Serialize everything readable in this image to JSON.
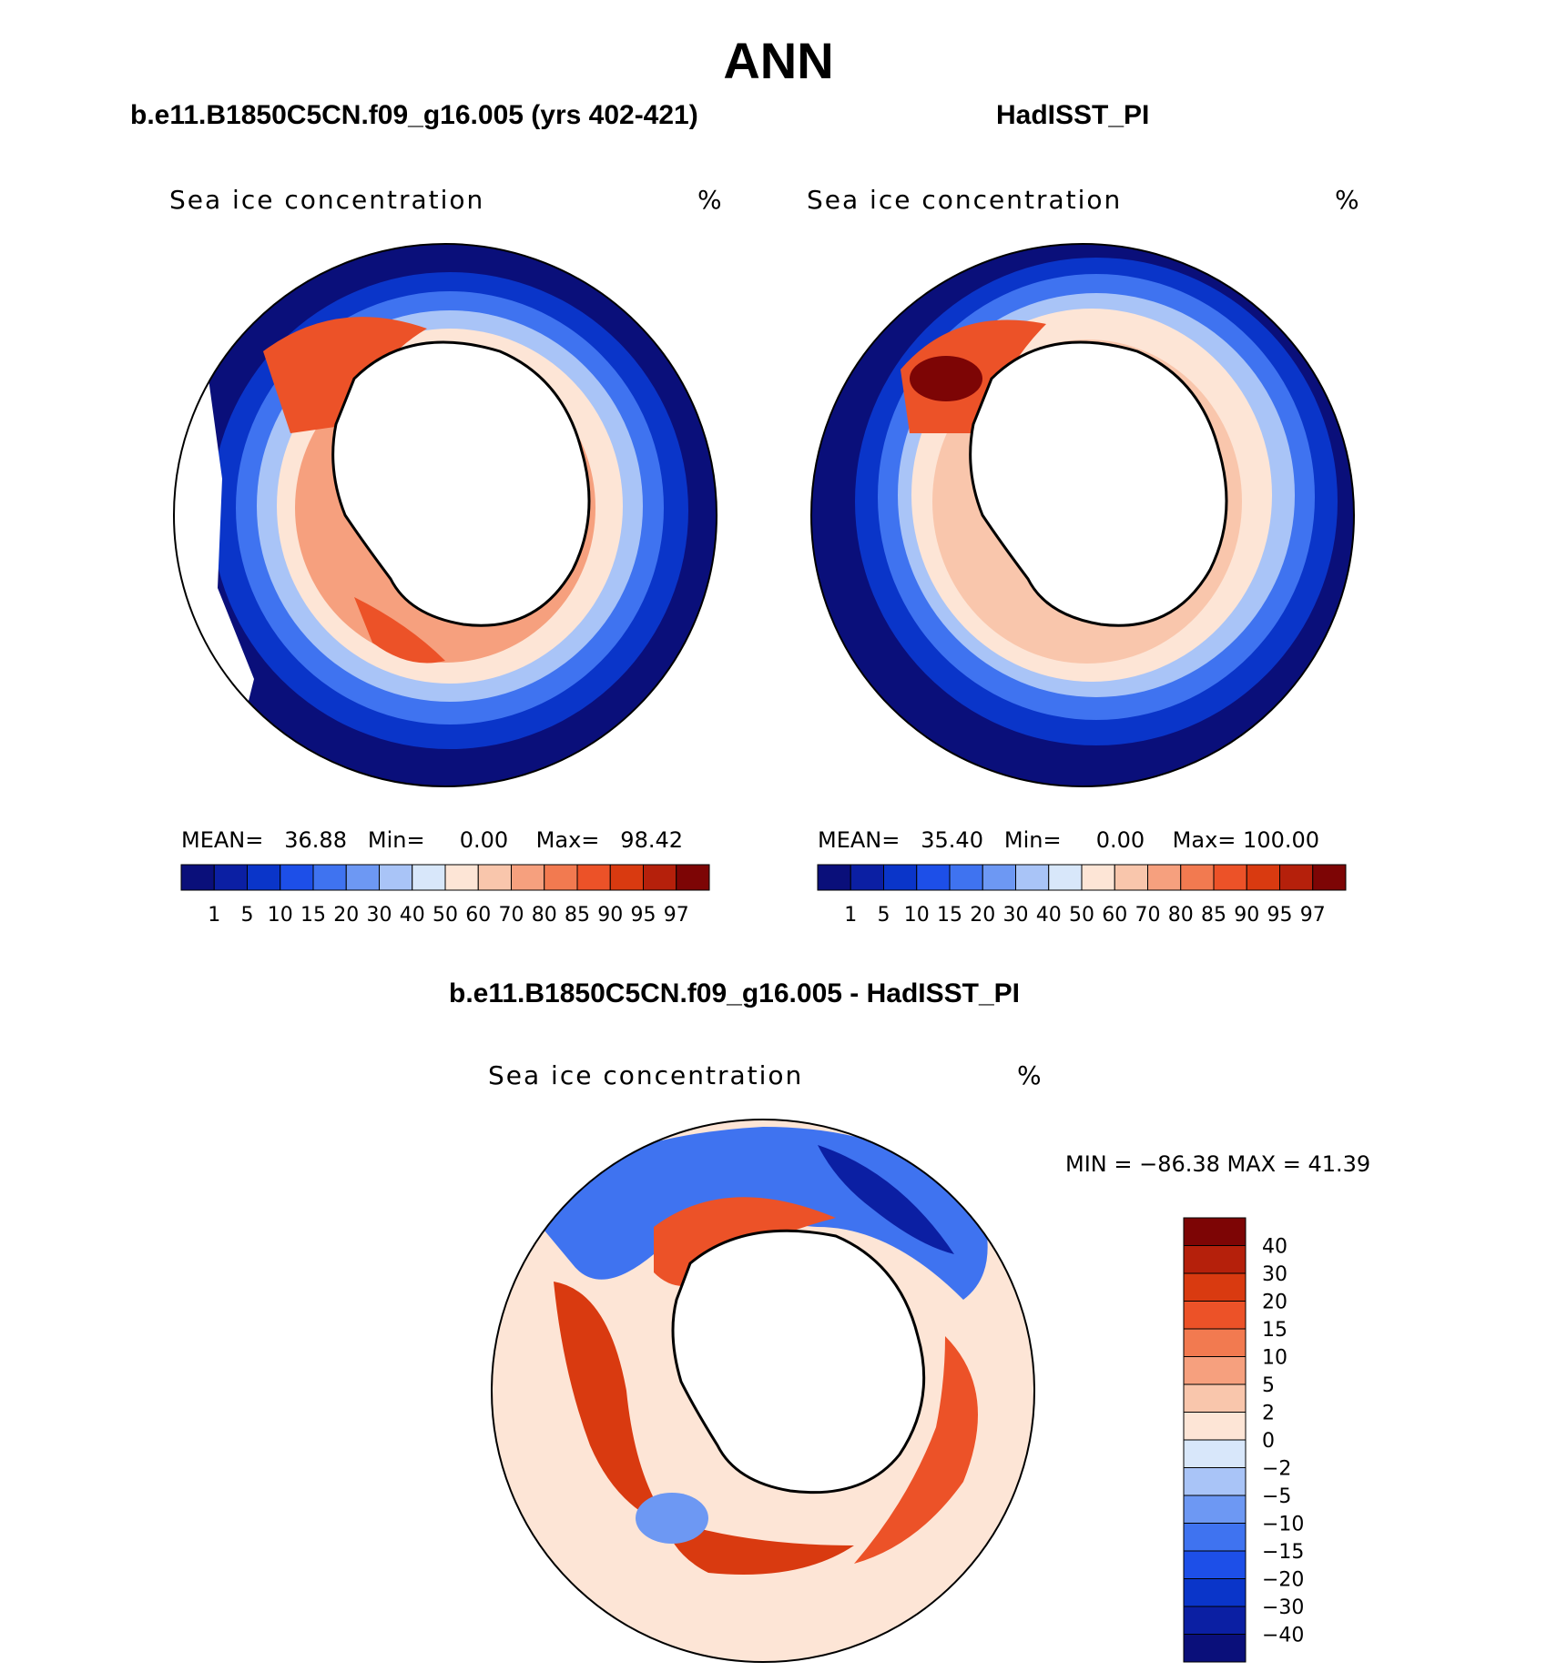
{
  "figure": {
    "title": "ANN",
    "left": {
      "panel_title": "b.e11.B1850C5CN.f09_g16.005 (yrs 402-421)",
      "variable": "Sea ice concentration",
      "units": "%",
      "stats": {
        "mean_label": "MEAN=",
        "mean": "36.88",
        "min_label": "Min=",
        "min": "0.00",
        "max_label": "Max=",
        "max": "98.42"
      }
    },
    "right": {
      "panel_title": "HadISST_PI",
      "variable": "Sea ice concentration",
      "units": "%",
      "stats": {
        "mean_label": "MEAN=",
        "mean": "35.40",
        "min_label": "Min=",
        "min": "0.00",
        "max_label": "Max=",
        "max": "100.00"
      }
    },
    "diff": {
      "panel_title": "b.e11.B1850C5CN.f09_g16.005 - HadISST_PI",
      "variable": "Sea ice concentration",
      "units": "%",
      "minmax": "MIN = −86.38 MAX =   41.39"
    }
  },
  "colorbars": {
    "concentration": {
      "labels": [
        "1",
        "5",
        "10",
        "15",
        "20",
        "30",
        "40",
        "50",
        "60",
        "70",
        "80",
        "85",
        "90",
        "95",
        "97"
      ],
      "colors": [
        "#0a0f7a",
        "#0b1fa3",
        "#0a35c9",
        "#1d4fe8",
        "#3f73f0",
        "#6d98f3",
        "#a9c4f7",
        "#d8e7fa",
        "#fde5d6",
        "#f9c6ac",
        "#f6a07e",
        "#f27a50",
        "#ec5228",
        "#d93a10",
        "#b5200b",
        "#7d0505"
      ]
    },
    "difference": {
      "labels": [
        "40",
        "30",
        "20",
        "15",
        "10",
        "5",
        "2",
        "0",
        "−2",
        "−5",
        "−10",
        "−15",
        "−20",
        "−30",
        "−40"
      ],
      "colors": [
        "#7d0505",
        "#b5200b",
        "#d93a10",
        "#ec5228",
        "#f27a50",
        "#f6a07e",
        "#f9c6ac",
        "#fde5d6",
        "#d8e7fa",
        "#a9c4f7",
        "#6d98f3",
        "#3f73f0",
        "#1d4fe8",
        "#0a35c9",
        "#0b1fa3",
        "#0a0f7a"
      ]
    }
  }
}
